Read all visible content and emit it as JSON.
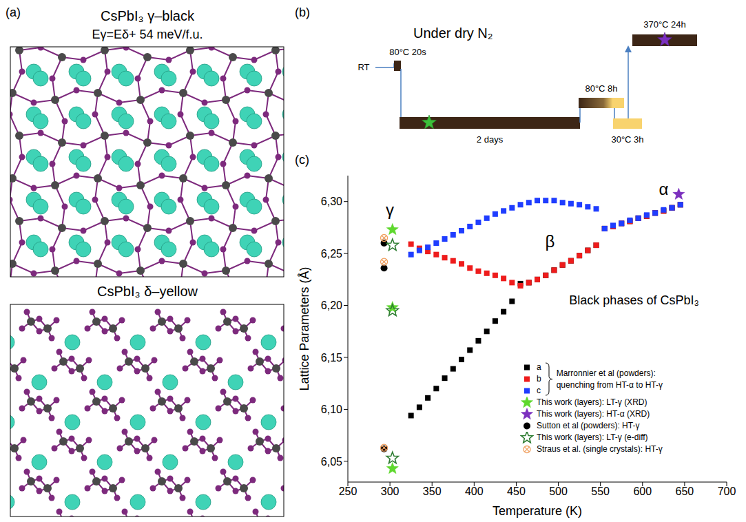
{
  "panel_a": {
    "label": "(a)",
    "structures": [
      {
        "title": "CsPbI₃ γ–black",
        "subtitle": "Eγ=Eδ+ 54 meV/f.u."
      },
      {
        "title": "CsPbI₃ δ–yellow"
      }
    ]
  },
  "panel_b": {
    "label": "(b)",
    "title": "Under dry N₂",
    "steps": [
      "RT",
      "80°C 20s",
      "2 days",
      "80°C 8h",
      "30°C 3h",
      "370°C 24h"
    ]
  },
  "chart_data": {
    "type": "scatter",
    "label": "(c)",
    "x_label": "Temperature (K)",
    "y_label": "Lattice Parameters (Å)",
    "xlim": [
      250,
      700
    ],
    "xticks": [
      250,
      300,
      350,
      400,
      450,
      500,
      550,
      600,
      650,
      700
    ],
    "ylim": [
      6.03,
      6.325
    ],
    "yticks": [
      {
        "value": 6.05,
        "label": "6,05"
      },
      {
        "value": 6.1,
        "label": "6,10"
      },
      {
        "value": 6.15,
        "label": "6,15"
      },
      {
        "value": 6.2,
        "label": "6,20"
      },
      {
        "value": 6.25,
        "label": "6,25"
      },
      {
        "value": 6.3,
        "label": "6,30"
      }
    ],
    "grid": false,
    "legend": "lower right",
    "legend_group": {
      "label": "Marronnier et al (powders): quenching from HT-α to HT-γ",
      "series": [
        "a",
        "b",
        "c"
      ]
    },
    "annotations": [
      {
        "text": "γ",
        "x": 300,
        "y": 6.292
      },
      {
        "text": "β",
        "x": 490,
        "y": 6.262
      },
      {
        "text": "α",
        "x": 625,
        "y": 6.312
      },
      {
        "text": "Black phases of CsPbI₃",
        "x": 590,
        "y": 6.205
      }
    ],
    "series": [
      {
        "name": "a",
        "color": "#000000",
        "marker": "square",
        "x": [
          325,
          335,
          345,
          355,
          365,
          375,
          385,
          395,
          405,
          415,
          425,
          435,
          445,
          455,
          465,
          475,
          485,
          495,
          505,
          515,
          525,
          535,
          545,
          555,
          565,
          575,
          585,
          595,
          605,
          615,
          625,
          635,
          645
        ],
        "values": [
          6.094,
          6.102,
          6.111,
          6.12,
          6.13,
          6.139,
          6.148,
          6.157,
          6.166,
          6.175,
          6.185,
          6.194,
          6.204,
          6.221,
          6.222,
          6.225,
          6.229,
          6.234,
          6.239,
          6.243,
          6.248,
          6.253,
          6.258,
          6.274,
          6.276,
          6.279,
          6.281,
          6.284,
          6.286,
          6.289,
          6.291,
          6.294,
          6.297
        ]
      },
      {
        "name": "b",
        "color": "#ee1c1c",
        "marker": "square",
        "x": [
          325,
          335,
          345,
          355,
          365,
          375,
          385,
          395,
          405,
          415,
          425,
          435,
          445,
          455,
          465,
          475,
          485,
          495,
          505,
          515,
          525,
          535,
          545,
          555,
          565,
          575,
          585,
          595,
          605,
          615,
          625,
          635,
          645
        ],
        "values": [
          6.259,
          6.255,
          6.252,
          6.249,
          6.246,
          6.243,
          6.24,
          6.236,
          6.233,
          6.231,
          6.229,
          6.226,
          6.222,
          6.219,
          6.222,
          6.225,
          6.229,
          6.234,
          6.239,
          6.243,
          6.248,
          6.253,
          6.258,
          6.274,
          6.276,
          6.279,
          6.281,
          6.284,
          6.286,
          6.289,
          6.291,
          6.294,
          6.297
        ]
      },
      {
        "name": "c",
        "color": "#1f3dff",
        "marker": "square",
        "x": [
          325,
          335,
          345,
          355,
          365,
          375,
          385,
          395,
          405,
          415,
          425,
          435,
          445,
          455,
          465,
          475,
          485,
          495,
          505,
          515,
          525,
          535,
          545,
          555,
          565,
          575,
          585,
          595,
          605,
          615,
          625,
          635,
          645
        ],
        "values": [
          6.249,
          6.253,
          6.256,
          6.26,
          6.264,
          6.268,
          6.272,
          6.276,
          6.28,
          6.284,
          6.288,
          6.291,
          6.294,
          6.297,
          6.299,
          6.301,
          6.301,
          6.301,
          6.299,
          6.298,
          6.297,
          6.295,
          6.293,
          6.274,
          6.277,
          6.279,
          6.282,
          6.284,
          6.287,
          6.289,
          6.292,
          6.294,
          6.297
        ]
      },
      {
        "name": "This work (layers): LT-γ (XRD)",
        "color": "#5fd82e",
        "marker": "star",
        "x": [
          303,
          303,
          303
        ],
        "values": [
          6.273,
          6.198,
          6.043
        ]
      },
      {
        "name": "This work (layers): HT-α (XRD)",
        "color": "#7b2fbe",
        "marker": "star",
        "x": [
          643
        ],
        "values": [
          6.307
        ]
      },
      {
        "name": "Sutton et al (powders): HT-γ",
        "color": "#000000",
        "marker": "circle",
        "x": [
          293,
          293,
          293
        ],
        "values": [
          6.26,
          6.236,
          6.062
        ]
      },
      {
        "name": "This work (layers): LT-γ (e-diff)",
        "color": "#2e7d32",
        "marker": "star_open",
        "x": [
          303,
          303,
          303
        ],
        "values": [
          6.258,
          6.195,
          6.053
        ]
      },
      {
        "name": "Straus et al. (single crystals): HT-γ",
        "color": "#f0a060",
        "marker": "circle_x",
        "x": [
          293,
          293,
          293
        ],
        "values": [
          6.265,
          6.242,
          6.063
        ]
      }
    ]
  }
}
